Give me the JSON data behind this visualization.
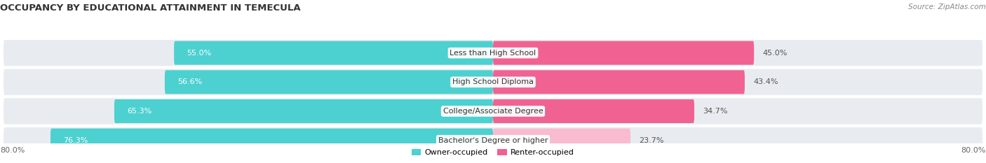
{
  "title": "OCCUPANCY BY EDUCATIONAL ATTAINMENT IN TEMECULA",
  "source": "Source: ZipAtlas.com",
  "categories": [
    "Less than High School",
    "High School Diploma",
    "College/Associate Degree",
    "Bachelor's Degree or higher"
  ],
  "owner_values": [
    55.0,
    56.6,
    65.3,
    76.3
  ],
  "renter_values": [
    45.0,
    43.4,
    34.7,
    23.7
  ],
  "renter_colors": [
    "#f06292",
    "#f06292",
    "#f06292",
    "#f8bbd0"
  ],
  "owner_color": "#4dd0d0",
  "bar_bg_color": "#e8ecf0",
  "axis_left_label": "80.0%",
  "axis_right_label": "80.0%",
  "legend_owner": "Owner-occupied",
  "legend_renter": "Renter-occupied",
  "legend_owner_color": "#4dd0d0",
  "legend_renter_color": "#f06292",
  "title_fontsize": 9.5,
  "source_fontsize": 7.5,
  "label_fontsize": 8,
  "value_fontsize": 8,
  "axis_fontsize": 8,
  "figsize": [
    14.06,
    2.33
  ],
  "dpi": 100
}
